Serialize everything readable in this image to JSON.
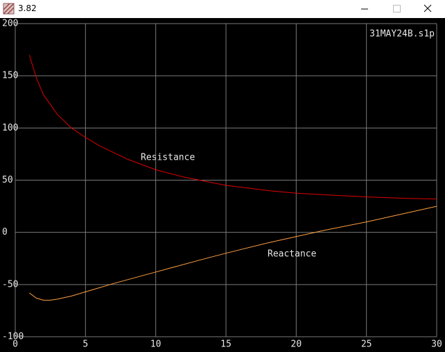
{
  "window": {
    "title": "3.82"
  },
  "chart_data": {
    "type": "line",
    "title": "31MAY24B.s1p",
    "annotations": [
      "Resistance",
      "Reactance"
    ],
    "xlim": [
      0,
      30
    ],
    "xticks": [
      0,
      5,
      10,
      15,
      20,
      25,
      30
    ],
    "ylim": [
      -100,
      200
    ],
    "yticks": [
      -100,
      -50,
      0,
      50,
      100,
      150,
      200
    ],
    "grid": true,
    "series": [
      {
        "name": "Resistance",
        "color": "#e00000",
        "x": [
          1,
          1.5,
          2,
          3,
          4,
          5,
          6,
          8,
          10,
          12,
          15,
          18,
          20,
          22,
          25,
          28,
          30
        ],
        "values": [
          170,
          148,
          132,
          113,
          100,
          91,
          83,
          70,
          60,
          53,
          45,
          40,
          37.5,
          36,
          34,
          32.5,
          32
        ]
      },
      {
        "name": "Reactance",
        "color": "#ffa040",
        "x": [
          1,
          1.5,
          2,
          2.5,
          3,
          4,
          5,
          7,
          10,
          13,
          15,
          18,
          20,
          22,
          25,
          28,
          30
        ],
        "values": [
          -58,
          -63,
          -65,
          -65,
          -64,
          -61,
          -57,
          -49,
          -38,
          -27,
          -20,
          -10,
          -4,
          2,
          10,
          19,
          25
        ]
      }
    ]
  }
}
